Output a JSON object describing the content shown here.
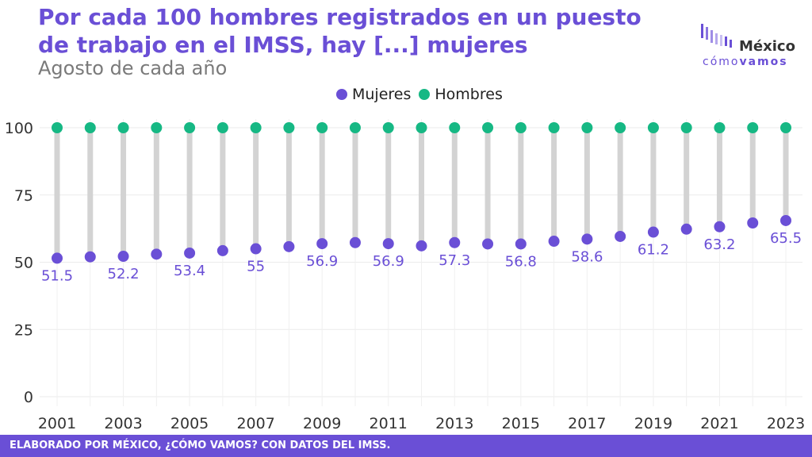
{
  "header": {
    "title": "Por cada 100 hombres registrados en un puesto de trabajo en el IMSS, hay [...] mujeres",
    "subtitle": "Agosto de cada año"
  },
  "logo": {
    "main": "México",
    "sub_a": "cómo",
    "sub_b": "vamos"
  },
  "legend": {
    "women": "Mujeres",
    "men": "Hombres"
  },
  "footer": {
    "text": "ELABORADO POR MÉXICO, ¿CÓMO VAMOS? CON DATOS DEL IMSS."
  },
  "colors": {
    "women": "#6a4fd6",
    "men": "#16b884",
    "connector": "#d3d3d3",
    "accent": "#6a4fd6"
  },
  "chart_data": {
    "type": "dumbbell",
    "title": "Por cada 100 hombres registrados en un puesto de trabajo en el IMSS, hay [...] mujeres",
    "subtitle": "Agosto de cada año",
    "x": [
      2001,
      2002,
      2003,
      2004,
      2005,
      2006,
      2007,
      2008,
      2009,
      2010,
      2011,
      2012,
      2013,
      2014,
      2015,
      2016,
      2017,
      2018,
      2019,
      2020,
      2021,
      2022,
      2023
    ],
    "x_ticks": [
      2001,
      2003,
      2005,
      2007,
      2009,
      2011,
      2013,
      2015,
      2017,
      2019,
      2021,
      2023
    ],
    "y_ticks": [
      0,
      25,
      50,
      75,
      100
    ],
    "ylim": [
      0,
      100
    ],
    "grid": true,
    "legend_position": "top",
    "series": [
      {
        "name": "Mujeres",
        "values": [
          51.5,
          52,
          52.2,
          53,
          53.4,
          54.3,
          55,
          55.8,
          56.9,
          57.3,
          56.9,
          56.1,
          57.3,
          56.8,
          56.8,
          57.8,
          58.6,
          59.6,
          61.2,
          62.3,
          63.2,
          64.6,
          65.5
        ]
      },
      {
        "name": "Hombres",
        "values": [
          100,
          100,
          100,
          100,
          100,
          100,
          100,
          100,
          100,
          100,
          100,
          100,
          100,
          100,
          100,
          100,
          100,
          100,
          100,
          100,
          100,
          100,
          100
        ]
      }
    ],
    "labeled_years": [
      2001,
      2003,
      2005,
      2007,
      2009,
      2011,
      2013,
      2015,
      2017,
      2019,
      2021,
      2023
    ]
  }
}
